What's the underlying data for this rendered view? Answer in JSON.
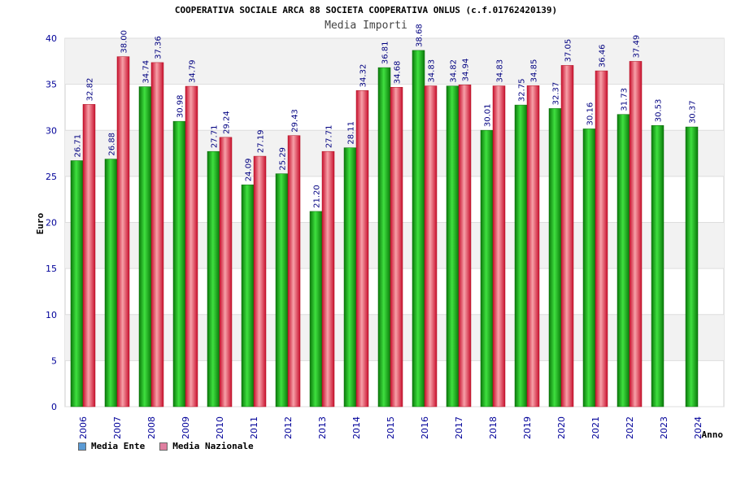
{
  "chart_data": {
    "type": "bar",
    "title": "COOPERATIVA SOCIALE ARCA 88 SOCIETA COOPERATIVA ONLUS (c.f.01762420139)",
    "subtitle": "Media Importi",
    "xlabel": "Anno",
    "ylabel": "Euro",
    "ylim": [
      0,
      40
    ],
    "yticks": [
      0,
      5,
      10,
      15,
      20,
      25,
      30,
      35,
      40
    ],
    "categories": [
      "2006",
      "2007",
      "2008",
      "2009",
      "2010",
      "2011",
      "2012",
      "2013",
      "2014",
      "2015",
      "2016",
      "2017",
      "2018",
      "2019",
      "2020",
      "2021",
      "2022",
      "2023",
      "2024"
    ],
    "series": [
      {
        "name": "Media Ente",
        "legend_color": "#5b9bd5",
        "bar_color": "#18b818",
        "values": [
          26.71,
          26.88,
          34.74,
          30.98,
          27.71,
          24.09,
          25.29,
          21.2,
          28.11,
          36.81,
          38.68,
          34.82,
          30.01,
          32.75,
          32.37,
          30.16,
          31.73,
          30.53,
          30.37
        ]
      },
      {
        "name": "Media Nazionale",
        "legend_color": "#e07fa0",
        "bar_color": "#e8404a",
        "values": [
          32.82,
          38.0,
          37.36,
          34.79,
          29.24,
          27.19,
          29.43,
          27.71,
          34.32,
          34.68,
          34.83,
          34.94,
          34.83,
          34.85,
          37.05,
          36.46,
          37.49,
          null,
          null
        ]
      }
    ],
    "grid": true
  }
}
